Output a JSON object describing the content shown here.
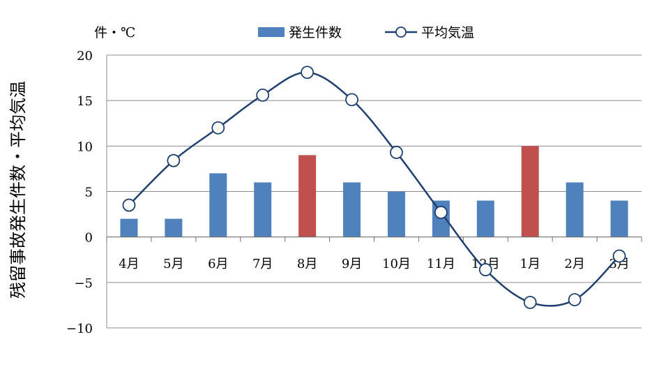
{
  "chart_data": {
    "type": "bar+line",
    "unit_label": "件・℃",
    "ylabel": "残留事故発生件数・平均気温",
    "categories": [
      "4月",
      "5月",
      "6月",
      "7月",
      "8月",
      "9月",
      "10月",
      "11月",
      "12月",
      "1月",
      "2月",
      "3月"
    ],
    "ylim": [
      -10,
      20
    ],
    "yticks": [
      20,
      15,
      10,
      5,
      0,
      -5,
      -10
    ],
    "ytick_labels": [
      "20",
      "15",
      "10",
      "5",
      "0",
      "−5",
      "−10"
    ],
    "grid": true,
    "legend_position": "top",
    "series": [
      {
        "name": "発生件数",
        "type": "bar",
        "color": "#4f81bd",
        "highlight_color": "#c0504d",
        "highlight_indices": [
          4,
          9
        ],
        "values": [
          2,
          2,
          7,
          6,
          9,
          6,
          5,
          4,
          4,
          10,
          6,
          4
        ]
      },
      {
        "name": "平均気温",
        "type": "line",
        "color": "#1f3f6e",
        "marker": "open-circle",
        "values": [
          3.5,
          8.4,
          12.0,
          15.6,
          18.1,
          15.1,
          9.3,
          2.7,
          -3.6,
          -7.2,
          -6.9,
          -2.1
        ]
      }
    ]
  }
}
